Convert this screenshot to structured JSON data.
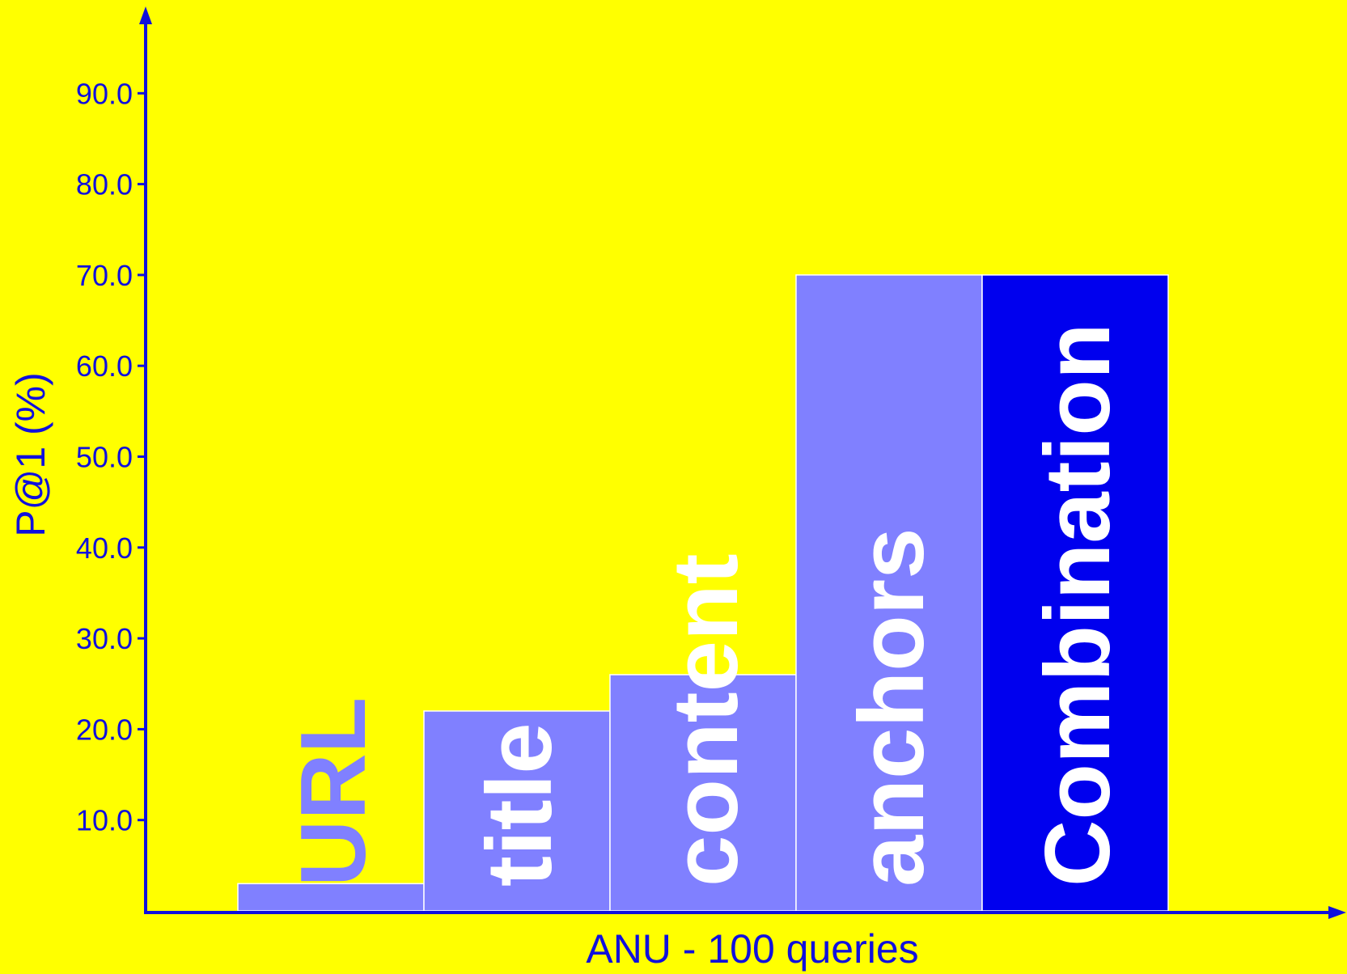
{
  "colors": {
    "background": "#ffff00",
    "axis": "#1010dd",
    "bar_light": "#8080ff",
    "bar_dark": "#0000ee",
    "bar_label_on_light": "#ffffff",
    "bar_label_on_dark": "#ffffff",
    "url_label": "#8080ff"
  },
  "chart_data": {
    "type": "bar",
    "xlabel": "ANU - 100 queries",
    "ylabel": "P@1 (%)",
    "ylim": [
      0,
      100
    ],
    "yticks": [
      "10.0",
      "20.0",
      "30.0",
      "40.0",
      "50.0",
      "60.0",
      "70.0",
      "80.0",
      "90.0"
    ],
    "grid": false,
    "legend": "none",
    "categories": [
      "URL",
      "title",
      "content",
      "anchors",
      "Combination"
    ],
    "values": [
      3.0,
      22.0,
      26.0,
      70.0,
      70.0
    ],
    "highlighted": "Combination"
  }
}
